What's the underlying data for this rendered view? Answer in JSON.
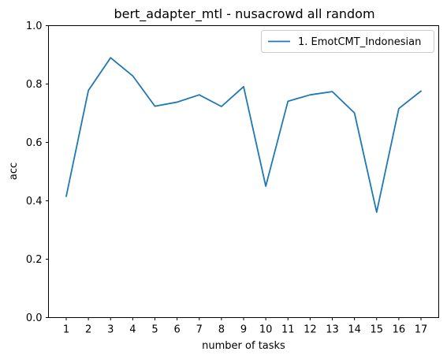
{
  "chart_data": {
    "type": "line",
    "title": "bert_adapter_mtl - nusacrowd all random",
    "xlabel": "number of tasks",
    "ylabel": "acc",
    "x": [
      1,
      2,
      3,
      4,
      5,
      6,
      7,
      8,
      9,
      10,
      11,
      12,
      13,
      14,
      15,
      16,
      17
    ],
    "x_tick_labels": [
      "1",
      "2",
      "3",
      "4",
      "5",
      "6",
      "7",
      "8",
      "9",
      "10",
      "11",
      "12",
      "13",
      "14",
      "15",
      "16",
      "17"
    ],
    "ylim": [
      0,
      1
    ],
    "y_ticks": [
      0.0,
      0.2,
      0.4,
      0.6,
      0.8,
      1.0
    ],
    "y_tick_labels": [
      "0.0",
      "0.2",
      "0.4",
      "0.6",
      "0.8",
      "1.0"
    ],
    "series": [
      {
        "name": "1. EmotCMT_Indonesian",
        "color": "#1f77b4",
        "values": [
          0.415,
          0.778,
          0.89,
          0.828,
          0.724,
          0.738,
          0.763,
          0.723,
          0.791,
          0.45,
          0.741,
          0.763,
          0.774,
          0.701,
          0.361,
          0.716,
          0.776
        ]
      }
    ],
    "grid": false,
    "legend_position": "top-right"
  }
}
